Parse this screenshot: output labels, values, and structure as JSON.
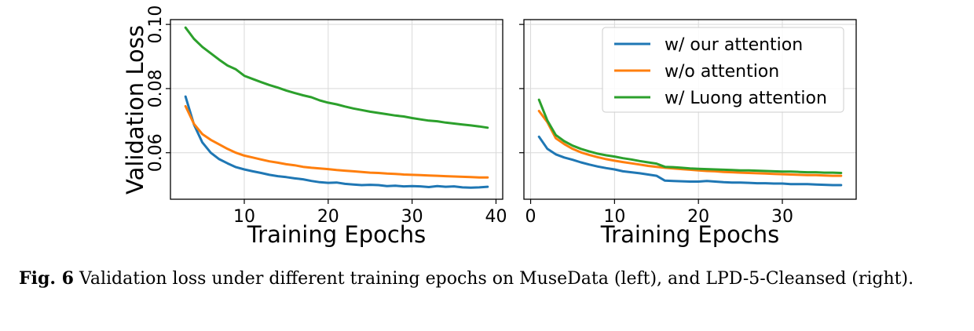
{
  "chart_data": [
    {
      "type": "line",
      "ylabel": "Validation Loss",
      "xlabel": "Training Epochs",
      "xlim": [
        1.2,
        40.8
      ],
      "ylim": [
        0.0455,
        0.1015
      ],
      "xticks": [
        10,
        20,
        30,
        40
      ],
      "xtick_labels": [
        "10",
        "20",
        "30",
        "40"
      ],
      "yticks": [
        0.06,
        0.08,
        0.1
      ],
      "ytick_labels": [
        "0.06",
        "0.08",
        "0.10"
      ],
      "grid": true,
      "series": [
        {
          "color": "#1f77b4",
          "x": [
            3,
            4,
            5,
            6,
            7,
            8,
            9,
            10,
            11,
            12,
            13,
            14,
            15,
            16,
            17,
            18,
            19,
            20,
            21,
            22,
            23,
            24,
            25,
            26,
            27,
            28,
            29,
            30,
            31,
            32,
            33,
            34,
            35,
            36,
            37,
            38,
            39
          ],
          "y": [
            0.0775,
            0.0688,
            0.0632,
            0.06,
            0.058,
            0.0567,
            0.0555,
            0.0548,
            0.0542,
            0.0537,
            0.0531,
            0.0527,
            0.0524,
            0.052,
            0.0517,
            0.0512,
            0.0508,
            0.0506,
            0.0507,
            0.0503,
            0.0501,
            0.0499,
            0.05,
            0.0499,
            0.0496,
            0.0497,
            0.0495,
            0.0496,
            0.0495,
            0.0493,
            0.0496,
            0.0494,
            0.0495,
            0.0492,
            0.0491,
            0.0492,
            0.0494
          ]
        },
        {
          "color": "#ff7f0e",
          "x": [
            3,
            4,
            5,
            6,
            7,
            8,
            9,
            10,
            11,
            12,
            13,
            14,
            15,
            16,
            17,
            18,
            19,
            20,
            21,
            22,
            23,
            24,
            25,
            26,
            27,
            28,
            29,
            30,
            31,
            32,
            33,
            34,
            35,
            36,
            37,
            38,
            39
          ],
          "y": [
            0.0745,
            0.069,
            0.0658,
            0.064,
            0.0626,
            0.0612,
            0.06,
            0.0591,
            0.0585,
            0.0579,
            0.0573,
            0.0569,
            0.0564,
            0.0561,
            0.0556,
            0.0553,
            0.0551,
            0.0549,
            0.0546,
            0.0544,
            0.0542,
            0.054,
            0.0538,
            0.0537,
            0.0535,
            0.0534,
            0.0532,
            0.0531,
            0.053,
            0.0529,
            0.0528,
            0.0527,
            0.0526,
            0.0525,
            0.0524,
            0.0523,
            0.0523
          ]
        },
        {
          "color": "#2ca02c",
          "x": [
            3,
            4,
            5,
            6,
            7,
            8,
            9,
            10,
            11,
            12,
            13,
            14,
            15,
            16,
            17,
            18,
            19,
            20,
            21,
            22,
            23,
            24,
            25,
            26,
            27,
            28,
            29,
            30,
            31,
            32,
            33,
            34,
            35,
            36,
            37,
            38,
            39
          ],
          "y": [
            0.099,
            0.0955,
            0.093,
            0.091,
            0.089,
            0.0872,
            0.086,
            0.084,
            0.083,
            0.082,
            0.0811,
            0.0803,
            0.0794,
            0.0786,
            0.0779,
            0.0773,
            0.0763,
            0.0756,
            0.0751,
            0.0744,
            0.0738,
            0.0733,
            0.0728,
            0.0724,
            0.072,
            0.0716,
            0.0713,
            0.0708,
            0.0704,
            0.07,
            0.0698,
            0.0694,
            0.0691,
            0.0688,
            0.0685,
            0.0682,
            0.0678
          ]
        }
      ]
    },
    {
      "type": "line",
      "xlabel": "Training Epochs",
      "xlim": [
        -0.8,
        38.8
      ],
      "ylim": [
        0.0455,
        0.1015
      ],
      "xticks": [
        0,
        10,
        20,
        30
      ],
      "xtick_labels": [
        "0",
        "10",
        "20",
        "30"
      ],
      "yticks": [
        0.06,
        0.08,
        0.1
      ],
      "grid": true,
      "legend": {
        "position": "top-right",
        "entries": [
          {
            "label": "w/ our attention",
            "color": "#1f77b4"
          },
          {
            "label": "w/o attention",
            "color": "#ff7f0e"
          },
          {
            "label": "w/ Luong attention",
            "color": "#2ca02c"
          }
        ]
      },
      "series": [
        {
          "name": "w/ our attention",
          "color": "#1f77b4",
          "x": [
            1,
            2,
            3,
            4,
            5,
            6,
            7,
            8,
            9,
            10,
            11,
            12,
            13,
            14,
            15,
            16,
            17,
            18,
            19,
            20,
            21,
            22,
            23,
            24,
            25,
            26,
            27,
            28,
            29,
            30,
            31,
            32,
            33,
            34,
            35,
            36,
            37
          ],
          "y": [
            0.065,
            0.0612,
            0.0595,
            0.0585,
            0.0578,
            0.057,
            0.0563,
            0.0557,
            0.0552,
            0.0548,
            0.0542,
            0.0539,
            0.0536,
            0.0532,
            0.0528,
            0.0513,
            0.0512,
            0.0511,
            0.051,
            0.051,
            0.0512,
            0.051,
            0.0508,
            0.0507,
            0.0507,
            0.0506,
            0.0505,
            0.0505,
            0.0504,
            0.0504,
            0.0502,
            0.0502,
            0.0502,
            0.0501,
            0.05,
            0.0499,
            0.0499
          ]
        },
        {
          "name": "w/o attention",
          "color": "#ff7f0e",
          "x": [
            1,
            2,
            3,
            4,
            5,
            6,
            7,
            8,
            9,
            10,
            11,
            12,
            13,
            14,
            15,
            16,
            17,
            18,
            19,
            20,
            21,
            22,
            23,
            24,
            25,
            26,
            27,
            28,
            29,
            30,
            31,
            32,
            33,
            34,
            35,
            36,
            37
          ],
          "y": [
            0.073,
            0.0695,
            0.0645,
            0.0627,
            0.0612,
            0.0601,
            0.0593,
            0.0586,
            0.058,
            0.0575,
            0.0571,
            0.0567,
            0.0563,
            0.0559,
            0.0556,
            0.0553,
            0.0551,
            0.0549,
            0.0547,
            0.0545,
            0.0543,
            0.0542,
            0.054,
            0.0539,
            0.0538,
            0.0537,
            0.0536,
            0.0535,
            0.0534,
            0.0533,
            0.0532,
            0.0531,
            0.053,
            0.053,
            0.0529,
            0.0528,
            0.0528
          ]
        },
        {
          "name": "w/ Luong attention",
          "color": "#2ca02c",
          "x": [
            1,
            2,
            3,
            4,
            5,
            6,
            7,
            8,
            9,
            10,
            11,
            12,
            13,
            14,
            15,
            16,
            17,
            18,
            19,
            20,
            21,
            22,
            23,
            24,
            25,
            26,
            27,
            28,
            29,
            30,
            31,
            32,
            33,
            34,
            35,
            36,
            37
          ],
          "y": [
            0.0765,
            0.07,
            0.0655,
            0.0636,
            0.0622,
            0.0612,
            0.0604,
            0.0597,
            0.0592,
            0.0588,
            0.0583,
            0.0579,
            0.0574,
            0.057,
            0.0566,
            0.0556,
            0.0555,
            0.0553,
            0.0551,
            0.055,
            0.0549,
            0.0548,
            0.0547,
            0.0546,
            0.0545,
            0.0545,
            0.0544,
            0.0543,
            0.0542,
            0.0541,
            0.0541,
            0.054,
            0.0539,
            0.0539,
            0.0538,
            0.0538,
            0.0537
          ]
        }
      ]
    }
  ],
  "caption": {
    "label": "Fig. 6",
    "text": " Validation loss under different training epochs on MuseData (left), and LPD-5-Cleansed (right)."
  }
}
